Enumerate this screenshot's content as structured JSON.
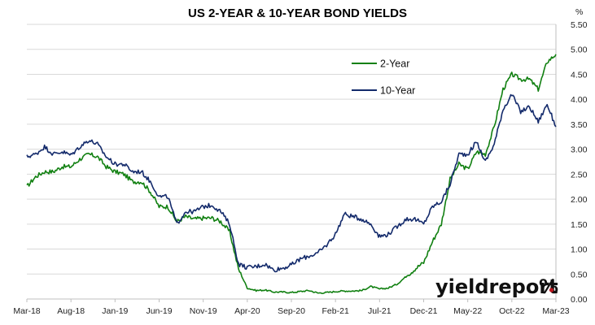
{
  "chart_data": {
    "type": "line",
    "title": "US 2-YEAR & 10-YEAR BOND YIELDS",
    "y_unit": "%",
    "ylim": [
      0,
      5.5
    ],
    "yticks": [
      "0.00",
      "0.50",
      "1.00",
      "1.50",
      "2.00",
      "2.50",
      "3.00",
      "3.50",
      "4.00",
      "4.50",
      "5.00",
      "5.50"
    ],
    "x_tick_labels": [
      "Mar-18",
      "Aug-18",
      "Jan-19",
      "Jun-19",
      "Nov-19",
      "Apr-20",
      "Sep-20",
      "Feb-21",
      "Jul-21",
      "Dec-21",
      "May-22",
      "Oct-22",
      "Mar-23"
    ],
    "grid": true,
    "legend_position": "top-right",
    "series": [
      {
        "name": "2-Year",
        "color": "#118011",
        "x": [
          "Mar-18",
          "Apr-18",
          "May-18",
          "Jun-18",
          "Jul-18",
          "Aug-18",
          "Sep-18",
          "Oct-18",
          "Nov-18",
          "Dec-18",
          "Jan-19",
          "Feb-19",
          "Mar-19",
          "Apr-19",
          "May-19",
          "Jun-19",
          "Jul-19",
          "Aug-19",
          "Sep-19",
          "Oct-19",
          "Nov-19",
          "Dec-19",
          "Jan-20",
          "Feb-20",
          "Mar-20",
          "Apr-20",
          "May-20",
          "Jun-20",
          "Jul-20",
          "Aug-20",
          "Sep-20",
          "Oct-20",
          "Nov-20",
          "Dec-20",
          "Jan-21",
          "Feb-21",
          "Mar-21",
          "Apr-21",
          "May-21",
          "Jun-21",
          "Jul-21",
          "Aug-21",
          "Sep-21",
          "Oct-21",
          "Nov-21",
          "Dec-21",
          "Jan-22",
          "Feb-22",
          "Mar-22",
          "Apr-22",
          "May-22",
          "Jun-22",
          "Jul-22",
          "Aug-22",
          "Sep-22",
          "Oct-22",
          "Nov-22",
          "Dec-22",
          "Jan-23",
          "Feb-23",
          "Mar-23"
        ],
        "values": [
          2.25,
          2.45,
          2.55,
          2.55,
          2.65,
          2.65,
          2.8,
          2.9,
          2.85,
          2.65,
          2.55,
          2.5,
          2.35,
          2.35,
          2.15,
          1.85,
          1.85,
          1.55,
          1.65,
          1.6,
          1.62,
          1.62,
          1.55,
          1.35,
          0.6,
          0.22,
          0.17,
          0.18,
          0.14,
          0.14,
          0.13,
          0.15,
          0.17,
          0.12,
          0.13,
          0.15,
          0.16,
          0.16,
          0.17,
          0.25,
          0.2,
          0.22,
          0.3,
          0.45,
          0.6,
          0.73,
          1.15,
          1.5,
          2.4,
          2.7,
          2.6,
          2.95,
          2.9,
          3.45,
          4.2,
          4.5,
          4.4,
          4.4,
          4.2,
          4.75,
          4.9
        ]
      },
      {
        "name": "10-Year",
        "color": "#132a6b",
        "x": [
          "Mar-18",
          "Apr-18",
          "May-18",
          "Jun-18",
          "Jul-18",
          "Aug-18",
          "Sep-18",
          "Oct-18",
          "Nov-18",
          "Dec-18",
          "Jan-19",
          "Feb-19",
          "Mar-19",
          "Apr-19",
          "May-19",
          "Jun-19",
          "Jul-19",
          "Aug-19",
          "Sep-19",
          "Oct-19",
          "Nov-19",
          "Dec-19",
          "Jan-20",
          "Feb-20",
          "Mar-20",
          "Apr-20",
          "May-20",
          "Jun-20",
          "Jul-20",
          "Aug-20",
          "Sep-20",
          "Oct-20",
          "Nov-20",
          "Dec-20",
          "Jan-21",
          "Feb-21",
          "Mar-21",
          "Apr-21",
          "May-21",
          "Jun-21",
          "Jul-21",
          "Aug-21",
          "Sep-21",
          "Oct-21",
          "Nov-21",
          "Dec-21",
          "Jan-22",
          "Feb-22",
          "Mar-22",
          "Apr-22",
          "May-22",
          "Jun-22",
          "Jul-22",
          "Aug-22",
          "Sep-22",
          "Oct-22",
          "Nov-22",
          "Dec-22",
          "Jan-23",
          "Feb-23",
          "Mar-23"
        ],
        "values": [
          2.85,
          2.9,
          3.05,
          2.9,
          2.95,
          2.88,
          3.05,
          3.18,
          3.1,
          2.85,
          2.7,
          2.7,
          2.55,
          2.55,
          2.35,
          2.05,
          2.05,
          1.5,
          1.75,
          1.75,
          1.85,
          1.88,
          1.75,
          1.5,
          0.7,
          0.63,
          0.65,
          0.7,
          0.58,
          0.62,
          0.68,
          0.8,
          0.86,
          0.92,
          1.08,
          1.3,
          1.7,
          1.65,
          1.6,
          1.5,
          1.25,
          1.3,
          1.45,
          1.6,
          1.6,
          1.5,
          1.85,
          1.95,
          2.3,
          2.9,
          2.9,
          3.15,
          2.75,
          3.1,
          3.8,
          4.1,
          3.75,
          3.85,
          3.55,
          3.9,
          3.45
        ]
      }
    ]
  },
  "watermark": {
    "brand_text": "yieldreport",
    "brand_symbol": "%",
    "brand_color": "#111111",
    "accent_color": "#c0171f"
  }
}
